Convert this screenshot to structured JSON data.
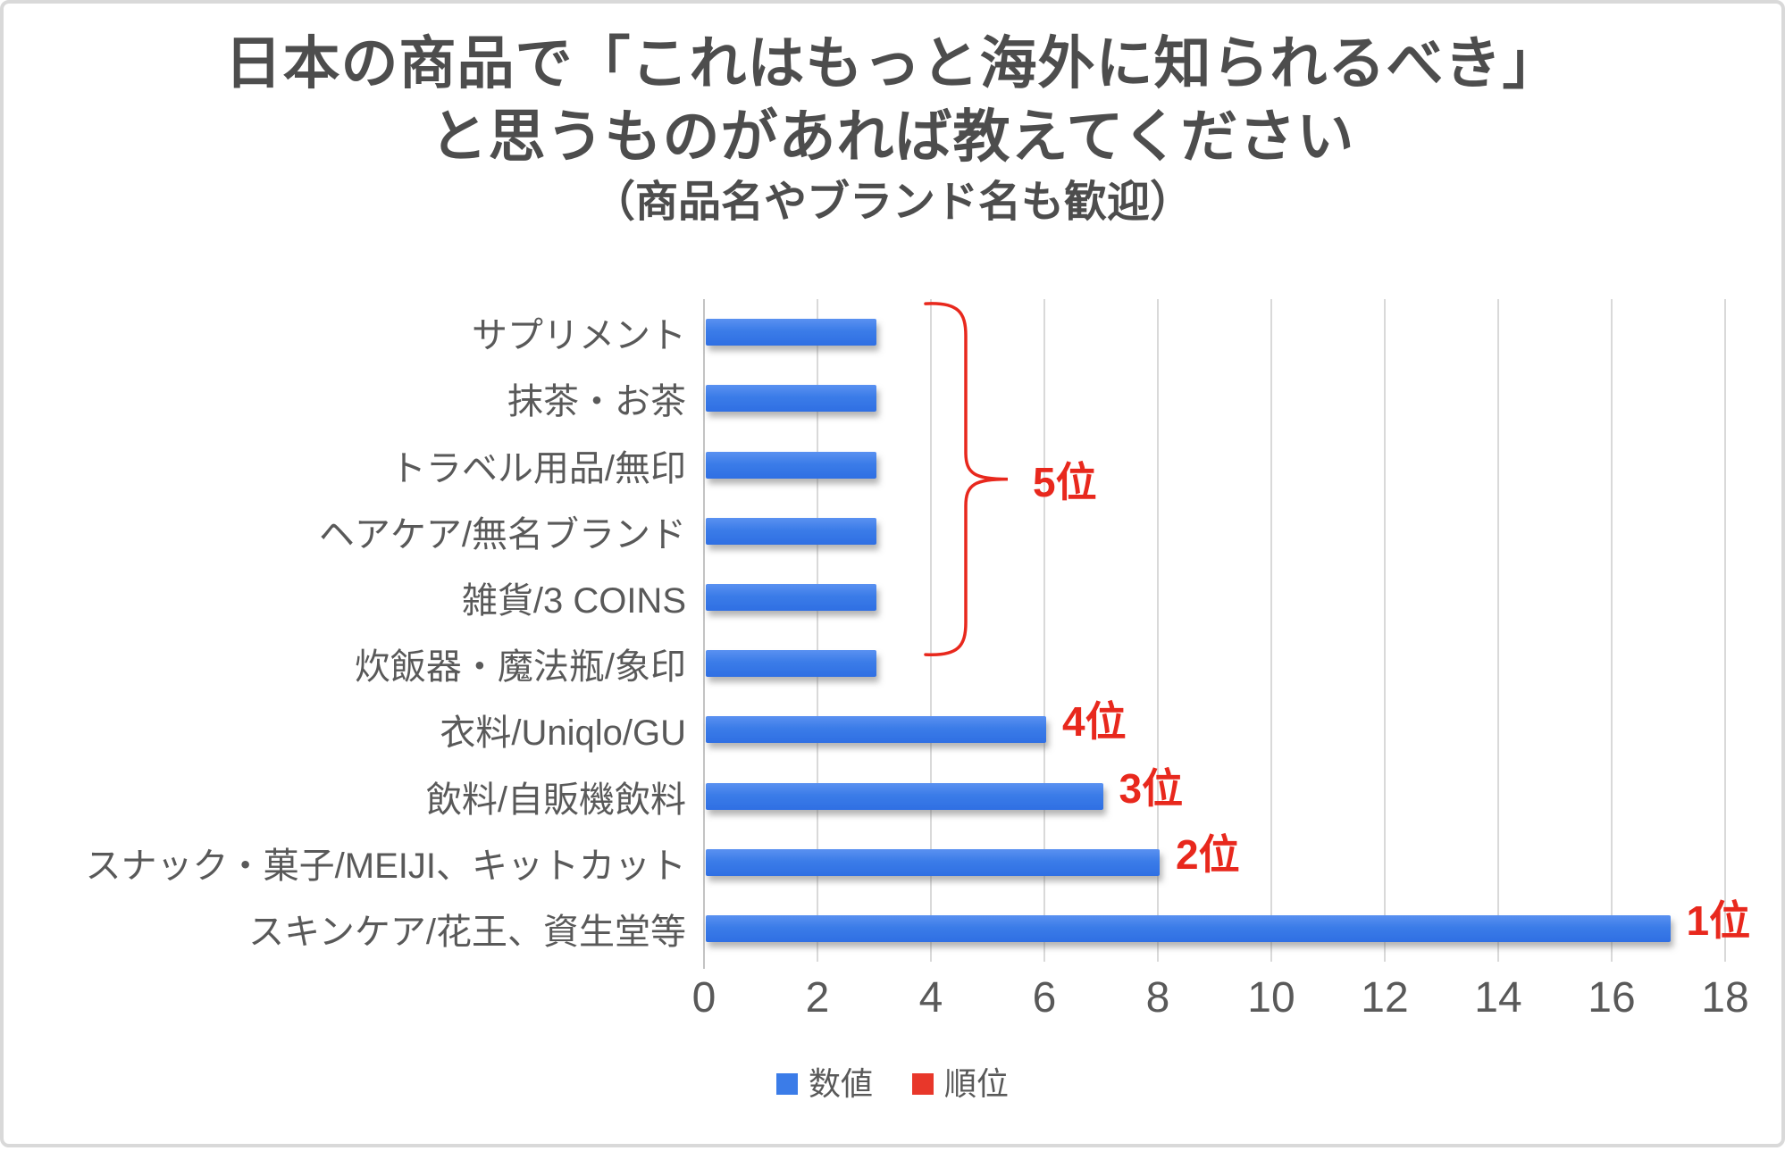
{
  "title": {
    "line1": "日本の商品で「これはもっと海外に知られるべき」",
    "line2": "と思うものがあれば教えてください",
    "line3": "（商品名やブランド名も歓迎）"
  },
  "chart_data": {
    "type": "bar",
    "orientation": "horizontal",
    "title": "日本の商品で「これはもっと海外に知られるべき」と思うものがあれば教えてください（商品名やブランド名も歓迎）",
    "categories": [
      "サプリメント",
      "抹茶・お茶",
      "トラベル用品/無印",
      "ヘアケア/無名ブランド",
      "雑貨/3 COINS",
      "炊飯器・魔法瓶/象印",
      "衣料/Uniqlo/GU",
      "飲料/自販機飲料",
      "スナック・菓子/MEIJI、キットカット",
      "スキンケア/花王、資生堂等"
    ],
    "series": [
      {
        "name": "数値",
        "color": "#3b7ce8",
        "values": [
          3,
          3,
          3,
          3,
          3,
          3,
          6,
          7,
          8,
          17
        ]
      }
    ],
    "xlim": [
      0,
      18
    ],
    "xticks": [
      0,
      2,
      4,
      6,
      8,
      10,
      12,
      14,
      16,
      18
    ],
    "grid": true,
    "annotation_color": "#e8281d",
    "annotations": [
      {
        "text": "5位",
        "type": "bracket",
        "rows": [
          0,
          5
        ]
      },
      {
        "text": "4位",
        "row": 6
      },
      {
        "text": "3位",
        "row": 7
      },
      {
        "text": "2位",
        "row": 8
      },
      {
        "text": "1位",
        "row": 9
      }
    ],
    "legend": {
      "position": "bottom",
      "items": [
        {
          "label": "数値",
          "color": "#3b7ce8"
        },
        {
          "label": "順位",
          "color": "#e8372a"
        }
      ]
    }
  }
}
